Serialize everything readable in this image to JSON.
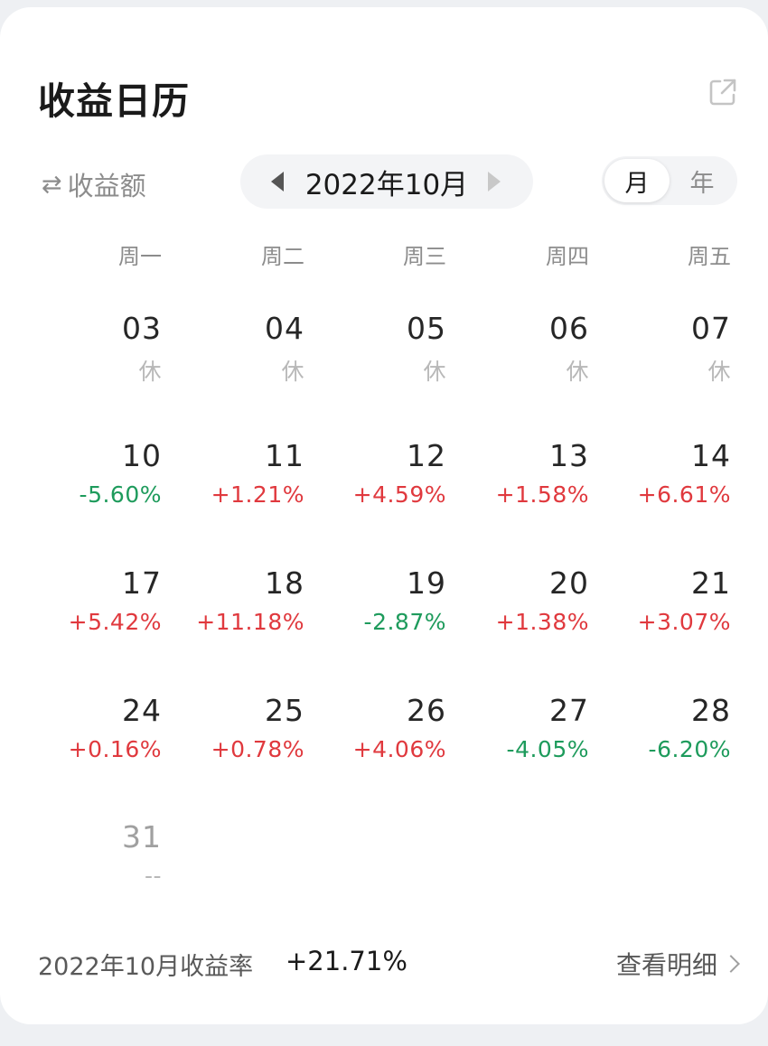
{
  "card": {
    "title": "收益日历",
    "metric_toggle": {
      "icon": "swap-arrows-icon",
      "label": "收益额"
    },
    "month_nav": {
      "label": "2022年10月"
    },
    "period": {
      "month_label": "月",
      "year_label": "年",
      "selected": "月"
    },
    "weekdays": [
      "周一",
      "周二",
      "周三",
      "周四",
      "周五"
    ],
    "weeks": [
      [
        {
          "day": "03",
          "value": "休",
          "status": "rest"
        },
        {
          "day": "04",
          "value": "休",
          "status": "rest"
        },
        {
          "day": "05",
          "value": "休",
          "status": "rest"
        },
        {
          "day": "06",
          "value": "休",
          "status": "rest"
        },
        {
          "day": "07",
          "value": "休",
          "status": "rest"
        }
      ],
      [
        {
          "day": "10",
          "value": "-5.60%",
          "status": "down"
        },
        {
          "day": "11",
          "value": "+1.21%",
          "status": "up"
        },
        {
          "day": "12",
          "value": "+4.59%",
          "status": "up"
        },
        {
          "day": "13",
          "value": "+1.58%",
          "status": "up"
        },
        {
          "day": "14",
          "value": "+6.61%",
          "status": "up"
        }
      ],
      [
        {
          "day": "17",
          "value": "+5.42%",
          "status": "up"
        },
        {
          "day": "18",
          "value": "+11.18%",
          "status": "up"
        },
        {
          "day": "19",
          "value": "-2.87%",
          "status": "down"
        },
        {
          "day": "20",
          "value": "+1.38%",
          "status": "up"
        },
        {
          "day": "21",
          "value": "+3.07%",
          "status": "up"
        }
      ],
      [
        {
          "day": "24",
          "value": "+0.16%",
          "status": "up"
        },
        {
          "day": "25",
          "value": "+0.78%",
          "status": "up"
        },
        {
          "day": "26",
          "value": "+4.06%",
          "status": "up"
        },
        {
          "day": "27",
          "value": "-4.05%",
          "status": "down"
        },
        {
          "day": "28",
          "value": "-6.20%",
          "status": "down"
        }
      ],
      [
        {
          "day": "31",
          "value": "--",
          "status": "none"
        }
      ]
    ],
    "footer": {
      "label": "2022年10月收益率",
      "value": "+21.71%",
      "detail_link": "查看明细"
    },
    "colors": {
      "up": "#e0393e",
      "down": "#1e9b5c",
      "rest": "#b8b8b8"
    }
  }
}
